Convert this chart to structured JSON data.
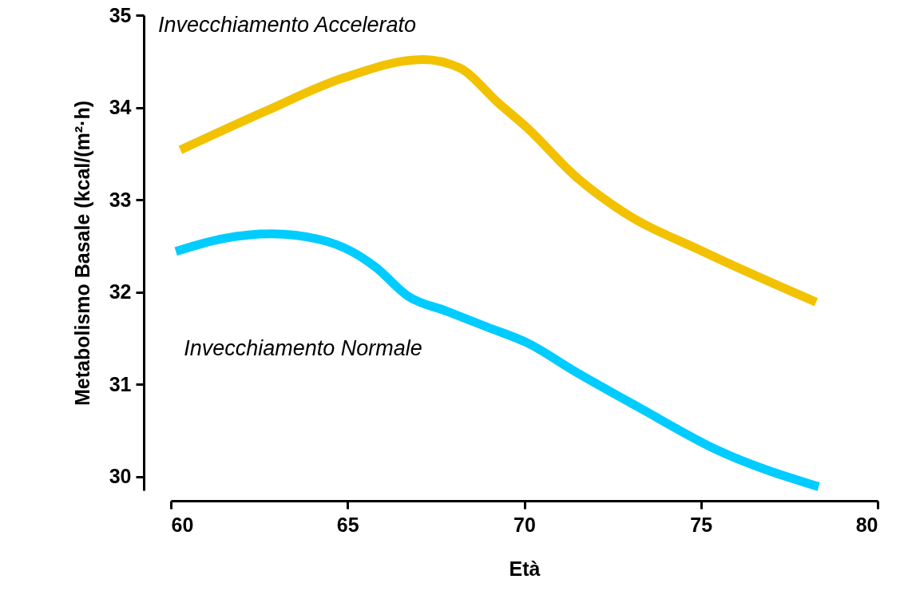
{
  "chart_data": {
    "type": "line",
    "xlabel": "Età",
    "ylabel": "Metabolismo Basale (kcal/(m²·h)",
    "xlim": [
      60,
      80
    ],
    "xticks": [
      60,
      65,
      70,
      75,
      80
    ],
    "ylim": [
      29.85,
      35
    ],
    "yticks": [
      30,
      31,
      32,
      33,
      34,
      35
    ],
    "series": [
      {
        "name": "Invecchiamento Accelerato",
        "color": "#f2c200",
        "x": [
          60.27,
          62.62,
          64.88,
          67.14,
          68.16,
          69.29,
          70.08,
          71.43,
          72.79,
          75.05,
          78.26
        ],
        "values": [
          33.54,
          33.95,
          34.32,
          34.52,
          34.43,
          34.04,
          33.78,
          33.26,
          32.87,
          32.44,
          31.89
        ]
      },
      {
        "name": "Invecchiamento Normale",
        "color": "#00ccff",
        "x": [
          60.14,
          61.49,
          62.85,
          64.2,
          65.11,
          65.79,
          66.69,
          67.82,
          68.95,
          70.08,
          71.43,
          73.24,
          75.5,
          78.33
        ],
        "values": [
          32.44,
          32.58,
          32.63,
          32.57,
          32.44,
          32.27,
          31.96,
          31.79,
          31.62,
          31.45,
          31.14,
          30.75,
          30.28,
          29.89
        ]
      }
    ]
  }
}
